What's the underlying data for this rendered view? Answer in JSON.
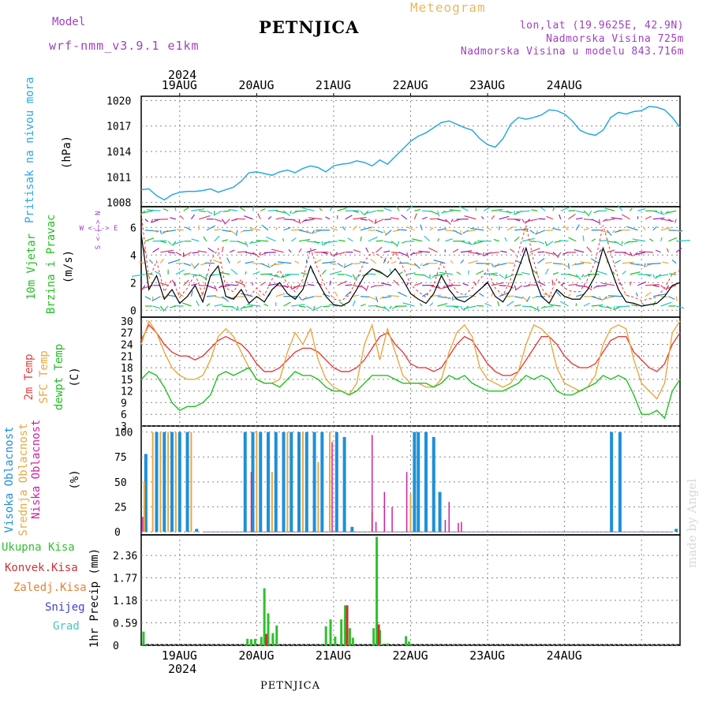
{
  "header": {
    "model_label": "Model",
    "model_name": "wrf-nmm_v3.9.1 e1km",
    "title": "PETNJICA",
    "meteogram": "Meteogram",
    "loc_line1": "lon,lat (19.9625E, 42.9N)",
    "loc_line2": "Nadmorska Visina 725m",
    "loc_line3": "Nadmorska Visina u modelu 843.716m"
  },
  "footer": {
    "station": "PETNJICA",
    "made_by": "made by Angel"
  },
  "axis": {
    "year": "2024",
    "days": [
      "19AUG",
      "20AUG",
      "21AUG",
      "22AUG",
      "23AUG",
      "24AUG"
    ]
  },
  "panels_labels": {
    "pressure_name": "Pritisak na nivou mora",
    "pressure_unit": "(hPa)",
    "wind_name1": "10m Vjetar",
    "wind_name2": "Brzina i Pravac",
    "wind_unit": "(m/s)",
    "wind_compass": "W <-|-> E",
    "wind_compass2": "S <-|-> N",
    "temp_name1": "2m Temp",
    "temp_name2": "SFC Temp",
    "temp_name3": "dewpt Temp",
    "temp_unit": "(C)",
    "cloud_name1": "Visoka Oblacnost",
    "cloud_name2": "Srednja Oblacnost",
    "cloud_name3": "Niska Oblacnost",
    "cloud_unit": "(%)",
    "precip_axis": "1hr Precip (mm)",
    "precip_legend": [
      "Ukupna Kisa",
      "Konvek.Kisa",
      "Zaledj.Kisa",
      "Snijeg",
      "Grad"
    ]
  },
  "colors": {
    "pressure": "#29a8e0",
    "wind_speed": "#000000",
    "wind_gust": "#e83030",
    "temp2m": "#e04040",
    "sfc_temp": "#e8a840",
    "dewpt": "#20c020",
    "cloud_high": "#1e90d8",
    "cloud_mid": "#e8a840",
    "cloud_low": "#d020a0",
    "precip_total": "#2ec02e",
    "precip_conv": "#d03030",
    "precip_frz": "#e88030",
    "precip_snow": "#4040d0",
    "precip_grad": "#40c8c0",
    "label_purple": "#a040c0"
  },
  "chart_data": [
    {
      "type": "line",
      "name": "pressure",
      "ylim": [
        1007.5,
        1020.5
      ],
      "yticks": [
        1008,
        1011,
        1014,
        1017,
        1020
      ],
      "x_days": [
        -0.5,
        6.5
      ],
      "x": [
        -0.5,
        -0.4,
        -0.3,
        -0.2,
        -0.1,
        0.0,
        0.1,
        0.2,
        0.3,
        0.4,
        0.5,
        0.6,
        0.7,
        0.8,
        0.9,
        1.0,
        1.1,
        1.2,
        1.3,
        1.4,
        1.5,
        1.6,
        1.7,
        1.8,
        1.9,
        2.0,
        2.1,
        2.2,
        2.3,
        2.4,
        2.5,
        2.6,
        2.7,
        2.8,
        2.9,
        3.0,
        3.1,
        3.2,
        3.3,
        3.4,
        3.5,
        3.6,
        3.7,
        3.8,
        3.9,
        4.0,
        4.1,
        4.2,
        4.3,
        4.4,
        4.5,
        4.6,
        4.7,
        4.8,
        4.9,
        5.0,
        5.1,
        5.2,
        5.3,
        5.4,
        5.5,
        5.6,
        5.7,
        5.8,
        5.9,
        6.0,
        6.1,
        6.2,
        6.3,
        6.4,
        6.5
      ],
      "y": [
        1009.5,
        1009.6,
        1008.8,
        1008.3,
        1008.9,
        1009.2,
        1009.3,
        1009.3,
        1009.4,
        1009.6,
        1009.2,
        1009.5,
        1009.8,
        1010.5,
        1011.5,
        1011.6,
        1011.4,
        1011.2,
        1011.6,
        1011.8,
        1011.5,
        1012.0,
        1012.3,
        1012.1,
        1011.6,
        1012.3,
        1012.5,
        1012.6,
        1012.9,
        1012.7,
        1012.3,
        1013.0,
        1012.5,
        1013.4,
        1014.3,
        1015.2,
        1015.8,
        1016.2,
        1016.8,
        1017.4,
        1017.6,
        1017.2,
        1016.8,
        1016.5,
        1015.5,
        1014.8,
        1014.5,
        1015.5,
        1017.2,
        1018.0,
        1017.8,
        1018.0,
        1018.3,
        1018.9,
        1018.8,
        1018.4,
        1017.6,
        1016.5,
        1016.1,
        1015.9,
        1016.5,
        1018.0,
        1018.6,
        1018.4,
        1018.7,
        1018.8,
        1019.3,
        1019.2,
        1018.9,
        1018.0,
        1016.8
      ]
    },
    {
      "type": "line",
      "name": "wind_speed",
      "ylim": [
        -0.5,
        7.5
      ],
      "yticks": [
        0,
        2,
        4,
        6
      ],
      "x": [
        -0.5,
        -0.4,
        -0.3,
        -0.2,
        -0.1,
        0.0,
        0.1,
        0.2,
        0.3,
        0.4,
        0.5,
        0.6,
        0.7,
        0.8,
        0.9,
        1.0,
        1.1,
        1.2,
        1.3,
        1.4,
        1.5,
        1.6,
        1.7,
        1.8,
        1.9,
        2.0,
        2.1,
        2.2,
        2.3,
        2.4,
        2.5,
        2.6,
        2.7,
        2.8,
        2.9,
        3.0,
        3.1,
        3.2,
        3.3,
        3.4,
        3.5,
        3.6,
        3.7,
        3.8,
        3.9,
        4.0,
        4.1,
        4.2,
        4.3,
        4.4,
        4.5,
        4.6,
        4.7,
        4.8,
        4.9,
        5.0,
        5.1,
        5.2,
        5.3,
        5.4,
        5.5,
        5.6,
        5.7,
        5.8,
        5.9,
        6.0,
        6.1,
        6.2,
        6.3,
        6.4,
        6.5
      ],
      "y": [
        5.5,
        1.5,
        2.5,
        0.8,
        1.5,
        0.5,
        1.0,
        1.8,
        0.6,
        2.5,
        3.2,
        1.0,
        0.8,
        1.5,
        0.5,
        1.0,
        0.6,
        1.5,
        2.0,
        1.2,
        0.8,
        1.5,
        3.2,
        2.0,
        1.0,
        0.4,
        0.3,
        0.6,
        1.5,
        2.5,
        3.0,
        2.8,
        2.4,
        3.0,
        2.2,
        1.2,
        0.8,
        0.5,
        1.2,
        2.5,
        1.5,
        0.8,
        0.6,
        1.0,
        1.5,
        2.0,
        1.0,
        0.6,
        1.5,
        3.0,
        4.5,
        2.5,
        1.0,
        0.5,
        1.5,
        1.0,
        0.8,
        0.8,
        1.5,
        2.5,
        4.5,
        3.0,
        1.5,
        0.6,
        0.5,
        0.3,
        0.4,
        0.5,
        1.0,
        1.8,
        2.0
      ]
    },
    {
      "type": "line",
      "name": "temperature",
      "ylim": [
        3,
        31
      ],
      "yticks": [
        3,
        6,
        9,
        12,
        15,
        18,
        21,
        24,
        27,
        30
      ],
      "x": [
        -0.5,
        -0.4,
        -0.3,
        -0.2,
        -0.1,
        0.0,
        0.1,
        0.2,
        0.3,
        0.4,
        0.5,
        0.6,
        0.7,
        0.8,
        0.9,
        1.0,
        1.1,
        1.2,
        1.3,
        1.4,
        1.5,
        1.6,
        1.7,
        1.8,
        1.9,
        2.0,
        2.1,
        2.2,
        2.3,
        2.4,
        2.5,
        2.6,
        2.7,
        2.8,
        2.9,
        3.0,
        3.1,
        3.2,
        3.3,
        3.4,
        3.5,
        3.6,
        3.7,
        3.8,
        3.9,
        4.0,
        4.1,
        4.2,
        4.3,
        4.4,
        4.5,
        4.6,
        4.7,
        4.8,
        4.9,
        5.0,
        5.1,
        5.2,
        5.3,
        5.4,
        5.5,
        5.6,
        5.7,
        5.8,
        5.9,
        6.0,
        6.1,
        6.2,
        6.3,
        6.4,
        6.5
      ],
      "series": [
        {
          "key": "t2m",
          "values": [
            25,
            29,
            27,
            24,
            22,
            21,
            21,
            20,
            21,
            23,
            25,
            26,
            25,
            24,
            22,
            19,
            17,
            17,
            18,
            20,
            22,
            23,
            23,
            22,
            20,
            18,
            17,
            17,
            18,
            20,
            23,
            26,
            27,
            24,
            22,
            19,
            18,
            18,
            17,
            18,
            21,
            24,
            26,
            25,
            22,
            19,
            17,
            16,
            16,
            17,
            20,
            23,
            26,
            26,
            24,
            21,
            19,
            18,
            18,
            19,
            22,
            25,
            26,
            26,
            22,
            20,
            18,
            17,
            19,
            24,
            27
          ]
        },
        {
          "key": "sfc",
          "values": [
            24,
            30,
            27,
            22,
            18,
            16,
            15,
            15,
            16,
            20,
            26,
            28,
            26,
            22,
            18,
            15,
            14,
            14,
            15,
            22,
            27,
            24,
            28,
            20,
            15,
            13,
            12,
            11,
            14,
            24,
            29,
            20,
            28,
            22,
            16,
            14,
            14,
            13,
            13,
            15,
            22,
            27,
            29,
            26,
            18,
            15,
            14,
            13,
            14,
            17,
            24,
            29,
            28,
            26,
            18,
            14,
            13,
            12,
            13,
            16,
            24,
            28,
            29,
            28,
            20,
            14,
            12,
            10,
            14,
            27,
            30
          ]
        },
        {
          "key": "dewpt",
          "values": [
            15,
            17,
            16,
            13,
            9,
            7,
            8,
            8,
            9,
            11,
            16,
            17,
            16,
            17,
            18,
            15,
            14,
            14,
            13,
            15,
            17,
            16,
            16,
            15,
            13,
            12,
            12,
            11,
            12,
            14,
            16,
            16,
            16,
            15,
            14,
            14,
            14,
            14,
            13,
            14,
            16,
            15,
            16,
            14,
            13,
            12,
            12,
            12,
            13,
            14,
            16,
            15,
            16,
            15,
            12,
            11,
            11,
            12,
            13,
            14,
            16,
            15,
            16,
            15,
            11,
            6,
            6,
            7,
            5,
            12,
            15
          ]
        }
      ]
    },
    {
      "type": "bar",
      "name": "cloud",
      "ylim": [
        0,
        100
      ],
      "yticks": [
        0,
        25,
        50,
        75,
        100
      ],
      "high": [
        {
          "x": -0.44,
          "v": 78
        },
        {
          "x": -0.3,
          "v": 100
        },
        {
          "x": -0.2,
          "v": 100
        },
        {
          "x": -0.1,
          "v": 100
        },
        {
          "x": 0.0,
          "v": 100
        },
        {
          "x": 0.1,
          "v": 100
        },
        {
          "x": 0.22,
          "v": 3
        },
        {
          "x": 0.85,
          "v": 100
        },
        {
          "x": 0.95,
          "v": 100
        },
        {
          "x": 1.05,
          "v": 100
        },
        {
          "x": 1.15,
          "v": 100
        },
        {
          "x": 1.25,
          "v": 100
        },
        {
          "x": 1.35,
          "v": 100
        },
        {
          "x": 1.45,
          "v": 100
        },
        {
          "x": 1.55,
          "v": 100
        },
        {
          "x": 1.65,
          "v": 100
        },
        {
          "x": 1.75,
          "v": 100
        },
        {
          "x": 1.85,
          "v": 100
        },
        {
          "x": 2.04,
          "v": 100
        },
        {
          "x": 2.14,
          "v": 95
        },
        {
          "x": 2.24,
          "v": 5
        },
        {
          "x": 3.05,
          "v": 100
        },
        {
          "x": 3.1,
          "v": 100
        },
        {
          "x": 3.2,
          "v": 100
        },
        {
          "x": 3.3,
          "v": 95
        },
        {
          "x": 3.38,
          "v": 40
        },
        {
          "x": 5.61,
          "v": 100
        },
        {
          "x": 5.72,
          "v": 100
        },
        {
          "x": 6.45,
          "v": 3
        }
      ],
      "mid": [
        {
          "x": -0.46,
          "v": 50
        },
        {
          "x": -0.35,
          "v": 100
        },
        {
          "x": -0.25,
          "v": 100
        },
        {
          "x": -0.15,
          "v": 100
        },
        {
          "x": -0.05,
          "v": 100
        },
        {
          "x": 0.15,
          "v": 100
        },
        {
          "x": 1.0,
          "v": 100
        },
        {
          "x": 1.2,
          "v": 60
        },
        {
          "x": 1.4,
          "v": 100
        },
        {
          "x": 1.6,
          "v": 100
        },
        {
          "x": 1.8,
          "v": 70
        },
        {
          "x": 1.95,
          "v": 100
        },
        {
          "x": 3.0,
          "v": 38
        },
        {
          "x": 2.5,
          "v": 20
        }
      ],
      "low": [
        {
          "x": -0.48,
          "v": 15
        },
        {
          "x": 0.93,
          "v": 60
        },
        {
          "x": 1.98,
          "v": 90
        },
        {
          "x": 2.5,
          "v": 97
        },
        {
          "x": 2.55,
          "v": 10
        },
        {
          "x": 2.66,
          "v": 40
        },
        {
          "x": 2.76,
          "v": 25
        },
        {
          "x": 2.95,
          "v": 60
        },
        {
          "x": 3.45,
          "v": 12
        },
        {
          "x": 3.5,
          "v": 30
        },
        {
          "x": 3.62,
          "v": 9
        },
        {
          "x": 3.66,
          "v": 10
        }
      ]
    },
    {
      "type": "bar",
      "name": "precipitation",
      "ylim": [
        0,
        2.9
      ],
      "yticks": [
        0,
        0.59,
        1.18,
        1.77,
        2.36
      ],
      "total": [
        {
          "x": -0.47,
          "v": 0.36
        },
        {
          "x": 0.88,
          "v": 0.17
        },
        {
          "x": 0.93,
          "v": 0.16
        },
        {
          "x": 0.98,
          "v": 0.17
        },
        {
          "x": 1.06,
          "v": 0.22
        },
        {
          "x": 1.1,
          "v": 1.5
        },
        {
          "x": 1.15,
          "v": 0.84
        },
        {
          "x": 1.21,
          "v": 0.32
        },
        {
          "x": 1.26,
          "v": 0.52
        },
        {
          "x": 1.9,
          "v": 0.5
        },
        {
          "x": 1.96,
          "v": 0.68
        },
        {
          "x": 2.02,
          "v": 0.23
        },
        {
          "x": 2.1,
          "v": 0.68
        },
        {
          "x": 2.15,
          "v": 1.05
        },
        {
          "x": 2.21,
          "v": 0.45
        },
        {
          "x": 2.25,
          "v": 0.2
        },
        {
          "x": 2.52,
          "v": 0.45
        },
        {
          "x": 2.56,
          "v": 2.85
        },
        {
          "x": 2.6,
          "v": 0.4
        },
        {
          "x": 2.7,
          "v": 0.05
        },
        {
          "x": 2.94,
          "v": 0.24
        },
        {
          "x": 2.98,
          "v": 0.1
        }
      ],
      "conv": [
        {
          "x": 1.1,
          "v": 0.3
        },
        {
          "x": 2.15,
          "v": 1.05
        },
        {
          "x": 2.56,
          "v": 0.55
        }
      ]
    }
  ]
}
